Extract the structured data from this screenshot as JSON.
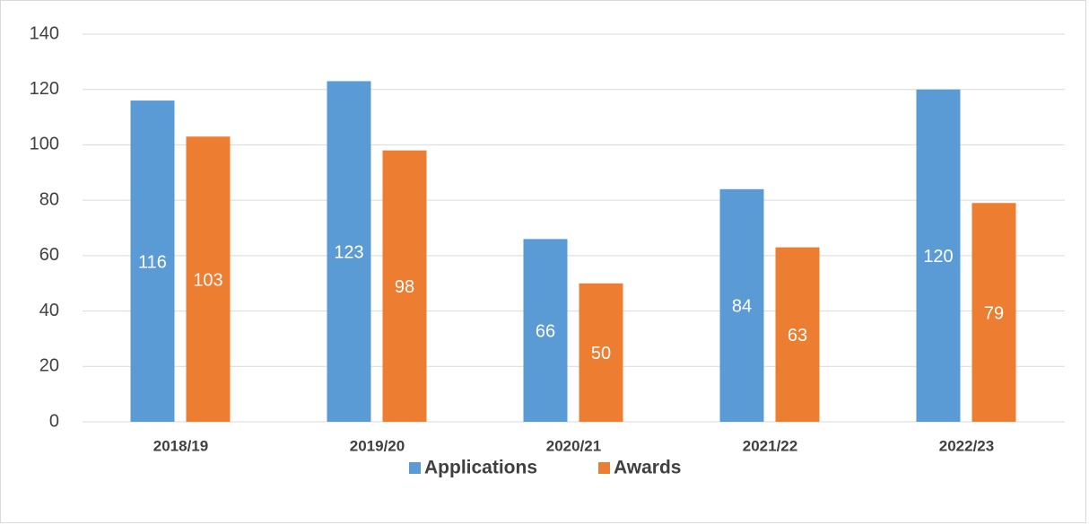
{
  "chart_data": {
    "type": "bar",
    "categories": [
      "2018/19",
      "2019/20",
      "2020/21",
      "2021/22",
      "2022/23"
    ],
    "series": [
      {
        "name": "Applications",
        "color": "#5b9bd5",
        "values": [
          116,
          123,
          66,
          84,
          120
        ]
      },
      {
        "name": "Awards",
        "color": "#ed7d31",
        "values": [
          103,
          98,
          50,
          63,
          79
        ]
      }
    ],
    "ylim": [
      0,
      140
    ],
    "yticks": [
      0,
      20,
      40,
      60,
      80,
      100,
      120,
      140
    ],
    "grid": true,
    "legend": "bottom"
  }
}
